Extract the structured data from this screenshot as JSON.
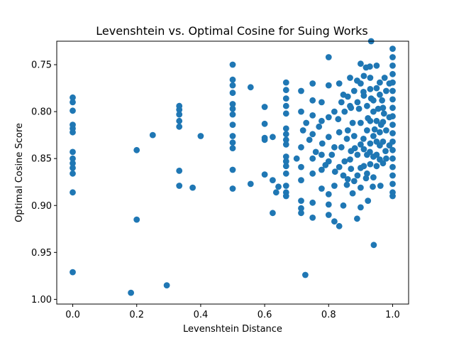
{
  "chart_data": {
    "type": "scatter",
    "title": "Levenshtein vs. Optimal Cosine for Suing Works",
    "xlabel": "Levenshtein Distance",
    "ylabel": "Optimal Cosine Score",
    "xlim": [
      -0.05,
      1.05
    ],
    "ylim": [
      0.725,
      1.005
    ],
    "y_inverted": true,
    "x_ticks": [
      0.0,
      0.2,
      0.4,
      0.6,
      0.8,
      1.0
    ],
    "x_tick_labels": [
      "0.0",
      "0.2",
      "0.4",
      "0.6",
      "0.8",
      "1.0"
    ],
    "y_ticks": [
      0.75,
      0.8,
      0.85,
      0.9,
      0.95,
      1.0
    ],
    "y_tick_labels": [
      "0.75",
      "0.80",
      "0.85",
      "0.90",
      "0.95",
      "1.00"
    ],
    "grid": false,
    "marker_color": "#1f77b4",
    "points": [
      [
        0.0,
        0.785
      ],
      [
        0.0,
        0.79
      ],
      [
        0.0,
        0.799
      ],
      [
        0.0,
        0.814
      ],
      [
        0.0,
        0.818
      ],
      [
        0.0,
        0.822
      ],
      [
        0.0,
        0.843
      ],
      [
        0.0,
        0.85
      ],
      [
        0.0,
        0.855
      ],
      [
        0.0,
        0.86
      ],
      [
        0.0,
        0.866
      ],
      [
        0.0,
        0.886
      ],
      [
        0.0,
        0.971
      ],
      [
        0.182,
        0.993
      ],
      [
        0.2,
        0.841
      ],
      [
        0.2,
        0.915
      ],
      [
        0.25,
        0.825
      ],
      [
        0.294,
        0.985
      ],
      [
        0.333,
        0.794
      ],
      [
        0.333,
        0.798
      ],
      [
        0.333,
        0.803
      ],
      [
        0.333,
        0.81
      ],
      [
        0.333,
        0.816
      ],
      [
        0.333,
        0.863
      ],
      [
        0.333,
        0.879
      ],
      [
        0.375,
        0.881
      ],
      [
        0.4,
        0.826
      ],
      [
        0.5,
        0.75
      ],
      [
        0.5,
        0.766
      ],
      [
        0.5,
        0.772
      ],
      [
        0.5,
        0.78
      ],
      [
        0.5,
        0.792
      ],
      [
        0.5,
        0.797
      ],
      [
        0.5,
        0.803
      ],
      [
        0.5,
        0.814
      ],
      [
        0.5,
        0.826
      ],
      [
        0.5,
        0.833
      ],
      [
        0.5,
        0.839
      ],
      [
        0.5,
        0.862
      ],
      [
        0.5,
        0.882
      ],
      [
        0.556,
        0.774
      ],
      [
        0.556,
        0.877
      ],
      [
        0.6,
        0.795
      ],
      [
        0.6,
        0.813
      ],
      [
        0.6,
        0.828
      ],
      [
        0.6,
        0.83
      ],
      [
        0.6,
        0.867
      ],
      [
        0.625,
        0.827
      ],
      [
        0.625,
        0.873
      ],
      [
        0.625,
        0.908
      ],
      [
        0.636,
        0.886
      ],
      [
        0.643,
        0.88
      ],
      [
        0.667,
        0.769
      ],
      [
        0.667,
        0.777
      ],
      [
        0.667,
        0.786
      ],
      [
        0.667,
        0.794
      ],
      [
        0.667,
        0.802
      ],
      [
        0.667,
        0.818
      ],
      [
        0.667,
        0.824
      ],
      [
        0.667,
        0.83
      ],
      [
        0.667,
        0.835
      ],
      [
        0.667,
        0.848
      ],
      [
        0.667,
        0.853
      ],
      [
        0.667,
        0.858
      ],
      [
        0.667,
        0.866
      ],
      [
        0.667,
        0.879
      ],
      [
        0.667,
        0.886
      ],
      [
        0.667,
        0.89
      ],
      [
        0.7,
        0.85
      ],
      [
        0.714,
        0.778
      ],
      [
        0.714,
        0.8
      ],
      [
        0.714,
        0.838
      ],
      [
        0.714,
        0.859
      ],
      [
        0.714,
        0.873
      ],
      [
        0.714,
        0.895
      ],
      [
        0.714,
        0.903
      ],
      [
        0.714,
        0.908
      ],
      [
        0.727,
        0.974
      ],
      [
        0.75,
        0.77
      ],
      [
        0.75,
        0.788
      ],
      [
        0.75,
        0.804
      ],
      [
        0.75,
        0.824
      ],
      [
        0.75,
        0.85
      ],
      [
        0.75,
        0.866
      ],
      [
        0.75,
        0.897
      ],
      [
        0.75,
        0.913
      ],
      [
        0.778,
        0.79
      ],
      [
        0.778,
        0.81
      ],
      [
        0.778,
        0.846
      ],
      [
        0.778,
        0.862
      ],
      [
        0.778,
        0.882
      ],
      [
        0.8,
        0.742
      ],
      [
        0.8,
        0.772
      ],
      [
        0.8,
        0.806
      ],
      [
        0.8,
        0.853
      ],
      [
        0.8,
        0.888
      ],
      [
        0.8,
        0.899
      ],
      [
        0.8,
        0.91
      ],
      [
        0.818,
        0.8
      ],
      [
        0.818,
        0.838
      ],
      [
        0.818,
        0.879
      ],
      [
        0.818,
        0.917
      ],
      [
        0.833,
        0.77
      ],
      [
        0.833,
        0.822
      ],
      [
        0.833,
        0.859
      ],
      [
        0.833,
        0.922
      ],
      [
        0.846,
        0.782
      ],
      [
        0.846,
        0.868
      ],
      [
        0.846,
        0.9
      ],
      [
        0.857,
        0.829
      ],
      [
        0.857,
        0.878
      ],
      [
        0.867,
        0.764
      ],
      [
        0.867,
        0.794
      ],
      [
        0.867,
        0.851
      ],
      [
        0.875,
        0.812
      ],
      [
        0.875,
        0.887
      ],
      [
        0.882,
        0.839
      ],
      [
        0.889,
        0.767
      ],
      [
        0.889,
        0.914
      ],
      [
        0.895,
        0.797
      ],
      [
        0.9,
        0.749
      ],
      [
        0.9,
        0.86
      ],
      [
        0.9,
        0.902
      ],
      [
        0.909,
        0.779
      ],
      [
        0.909,
        0.829
      ],
      [
        0.917,
        0.753
      ],
      [
        0.917,
        0.871
      ],
      [
        0.923,
        0.807
      ],
      [
        0.923,
        0.895
      ],
      [
        0.929,
        0.752
      ],
      [
        0.929,
        0.843
      ],
      [
        0.933,
        0.725
      ],
      [
        0.933,
        0.786
      ],
      [
        0.938,
        0.88
      ],
      [
        0.941,
        0.942
      ],
      [
        0.944,
        0.819
      ],
      [
        0.95,
        0.751
      ],
      [
        0.95,
        0.858
      ],
      [
        0.955,
        0.797
      ],
      [
        0.96,
        0.769
      ],
      [
        0.96,
        0.836
      ],
      [
        0.962,
        0.879
      ],
      [
        0.964,
        0.814
      ],
      [
        0.967,
        0.788
      ],
      [
        0.97,
        0.855
      ],
      [
        0.973,
        0.802
      ],
      [
        0.975,
        0.764
      ],
      [
        0.978,
        0.842
      ],
      [
        1.0,
        0.733
      ],
      [
        1.0,
        0.742
      ],
      [
        1.0,
        0.751
      ],
      [
        1.0,
        0.76
      ],
      [
        1.0,
        0.769
      ],
      [
        1.0,
        0.778
      ],
      [
        1.0,
        0.787
      ],
      [
        1.0,
        0.796
      ],
      [
        1.0,
        0.805
      ],
      [
        1.0,
        0.814
      ],
      [
        1.0,
        0.823
      ],
      [
        1.0,
        0.832
      ],
      [
        1.0,
        0.841
      ],
      [
        1.0,
        0.85
      ],
      [
        1.0,
        0.859
      ],
      [
        1.0,
        0.868
      ],
      [
        1.0,
        0.877
      ],
      [
        1.0,
        0.886
      ],
      [
        1.0,
        0.89
      ],
      [
        0.72,
        0.82
      ],
      [
        0.73,
        0.812
      ],
      [
        0.74,
        0.83
      ],
      [
        0.76,
        0.843
      ],
      [
        0.77,
        0.816
      ],
      [
        0.78,
        0.834
      ],
      [
        0.79,
        0.857
      ],
      [
        0.8,
        0.827
      ],
      [
        0.81,
        0.846
      ],
      [
        0.82,
        0.864
      ],
      [
        0.83,
        0.808
      ],
      [
        0.84,
        0.838
      ],
      [
        0.85,
        0.853
      ],
      [
        0.86,
        0.82
      ],
      [
        0.86,
        0.872
      ],
      [
        0.87,
        0.842
      ],
      [
        0.87,
        0.861
      ],
      [
        0.88,
        0.826
      ],
      [
        0.88,
        0.874
      ],
      [
        0.89,
        0.846
      ],
      [
        0.89,
        0.868
      ],
      [
        0.9,
        0.812
      ],
      [
        0.9,
        0.835
      ],
      [
        0.9,
        0.881
      ],
      [
        0.91,
        0.84
      ],
      [
        0.91,
        0.858
      ],
      [
        0.92,
        0.82
      ],
      [
        0.92,
        0.846
      ],
      [
        0.92,
        0.866
      ],
      [
        0.93,
        0.81
      ],
      [
        0.93,
        0.834
      ],
      [
        0.93,
        0.856
      ],
      [
        0.94,
        0.8
      ],
      [
        0.94,
        0.826
      ],
      [
        0.94,
        0.848
      ],
      [
        0.94,
        0.87
      ],
      [
        0.95,
        0.81
      ],
      [
        0.95,
        0.832
      ],
      [
        0.95,
        0.846
      ],
      [
        0.96,
        0.822
      ],
      [
        0.96,
        0.851
      ],
      [
        0.97,
        0.811
      ],
      [
        0.97,
        0.832
      ],
      [
        0.98,
        0.82
      ],
      [
        0.98,
        0.85
      ],
      [
        0.99,
        0.806
      ],
      [
        0.99,
        0.836
      ],
      [
        0.84,
        0.79
      ],
      [
        0.85,
        0.8
      ],
      [
        0.86,
        0.784
      ],
      [
        0.87,
        0.796
      ],
      [
        0.88,
        0.778
      ],
      [
        0.89,
        0.79
      ],
      [
        0.91,
        0.783
      ],
      [
        0.92,
        0.794
      ],
      [
        0.93,
        0.776
      ],
      [
        0.94,
        0.788
      ],
      [
        0.96,
        0.782
      ],
      [
        0.97,
        0.796
      ],
      [
        0.9,
        0.77
      ],
      [
        0.91,
        0.762
      ],
      [
        0.93,
        0.764
      ],
      [
        0.95,
        0.775
      ],
      [
        0.98,
        0.778
      ],
      [
        0.99,
        0.77
      ]
    ]
  }
}
